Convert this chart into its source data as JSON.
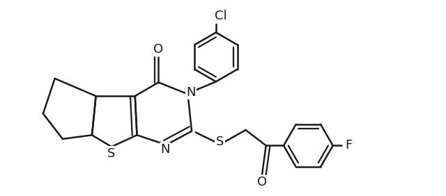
{
  "background_color": "#ffffff",
  "line_color": "#1a1a1a",
  "line_width": 1.8,
  "figsize": [
    6.4,
    2.82
  ],
  "dpi": 100,
  "xlim": [
    0,
    10
  ],
  "ylim": [
    0,
    5
  ]
}
